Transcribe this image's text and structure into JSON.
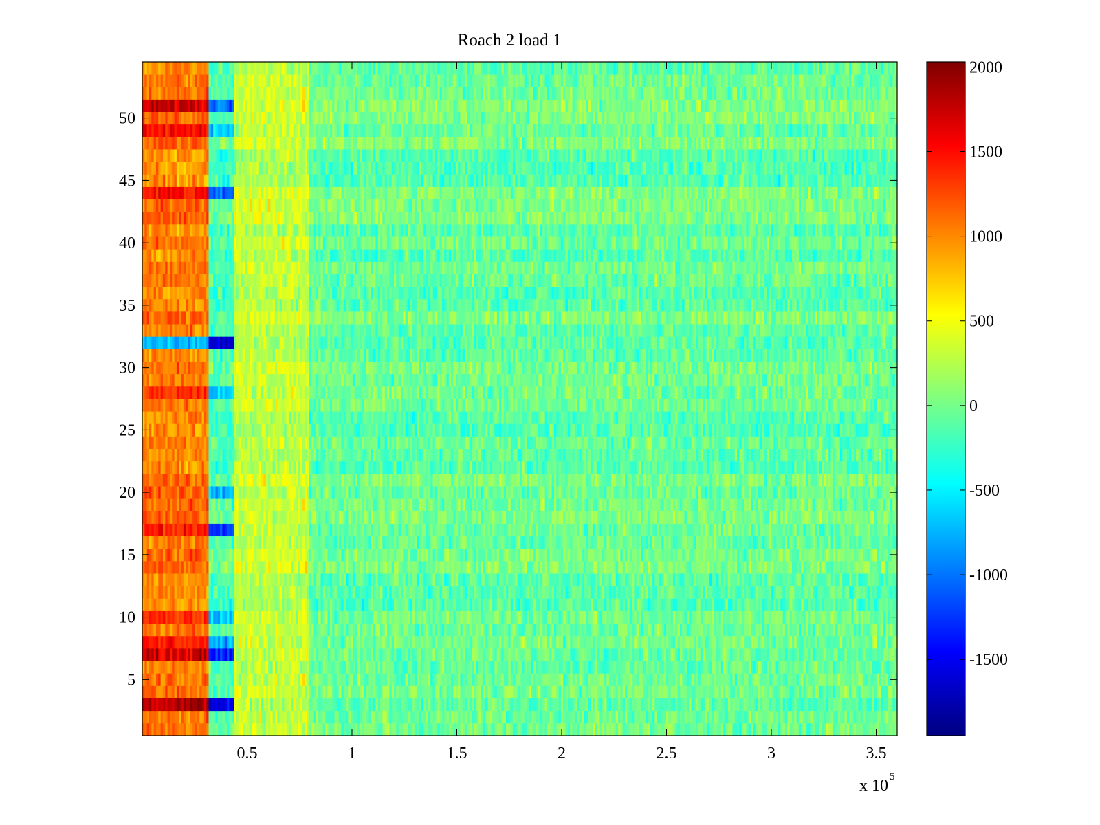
{
  "chart_data": {
    "type": "heatmap",
    "title": "Roach 2 load 1",
    "xlabel": "",
    "ylabel": "",
    "x_multiplier": "x 10",
    "x_multiplier_exponent": "5",
    "xlim": [
      0,
      360000
    ],
    "ylim": [
      0.5,
      54.5
    ],
    "x_ticks": [
      {
        "value": 50000,
        "label": "0.5"
      },
      {
        "value": 100000,
        "label": "1"
      },
      {
        "value": 150000,
        "label": "1.5"
      },
      {
        "value": 200000,
        "label": "2"
      },
      {
        "value": 250000,
        "label": "2.5"
      },
      {
        "value": 300000,
        "label": "3"
      },
      {
        "value": 350000,
        "label": "3.5"
      }
    ],
    "y_ticks": [
      {
        "value": 5,
        "label": "5"
      },
      {
        "value": 10,
        "label": "10"
      },
      {
        "value": 15,
        "label": "15"
      },
      {
        "value": 20,
        "label": "20"
      },
      {
        "value": 25,
        "label": "25"
      },
      {
        "value": 30,
        "label": "30"
      },
      {
        "value": 35,
        "label": "35"
      },
      {
        "value": 40,
        "label": "40"
      },
      {
        "value": 45,
        "label": "45"
      },
      {
        "value": 50,
        "label": "50"
      }
    ],
    "rows": 54,
    "colormap": "jet",
    "clim": [
      -1950,
      2030
    ],
    "colorbar_ticks": [
      {
        "value": 2000,
        "label": "2000"
      },
      {
        "value": 1500,
        "label": "1500"
      },
      {
        "value": 1000,
        "label": "1000"
      },
      {
        "value": 500,
        "label": "500"
      },
      {
        "value": 0,
        "label": "0"
      },
      {
        "value": -500,
        "label": "-500"
      },
      {
        "value": -1000,
        "label": "-1000"
      },
      {
        "value": -1500,
        "label": "-1500"
      }
    ],
    "regions": [
      {
        "x_start": 0,
        "x_end": 32000,
        "typical_value": 1050
      },
      {
        "x_start": 32000,
        "x_end": 44000,
        "typical_value": -150
      },
      {
        "x_start": 44000,
        "x_end": 80000,
        "typical_value": 300
      },
      {
        "x_start": 80000,
        "x_end": 360000,
        "typical_value": -50
      }
    ],
    "row_anomalies": [
      {
        "row": 3,
        "early_value": 1900,
        "dip_value": -1450
      },
      {
        "row": 7,
        "early_value": 1700,
        "dip_value": -1300
      },
      {
        "row": 8,
        "early_value": 1400,
        "dip_value": -800
      },
      {
        "row": 10,
        "early_value": 1300,
        "dip_value": -700
      },
      {
        "row": 17,
        "early_value": 1400,
        "dip_value": -1200
      },
      {
        "row": 20,
        "early_value": 1200,
        "dip_value": -700
      },
      {
        "row": 28,
        "early_value": 1300,
        "dip_value": -700
      },
      {
        "row": 32,
        "early_value": -700,
        "dip_value": -1500
      },
      {
        "row": 44,
        "early_value": 1400,
        "dip_value": -1100
      },
      {
        "row": 49,
        "early_value": 1500,
        "dip_value": -600
      },
      {
        "row": 51,
        "early_value": 1600,
        "dip_value": -1100
      }
    ]
  }
}
